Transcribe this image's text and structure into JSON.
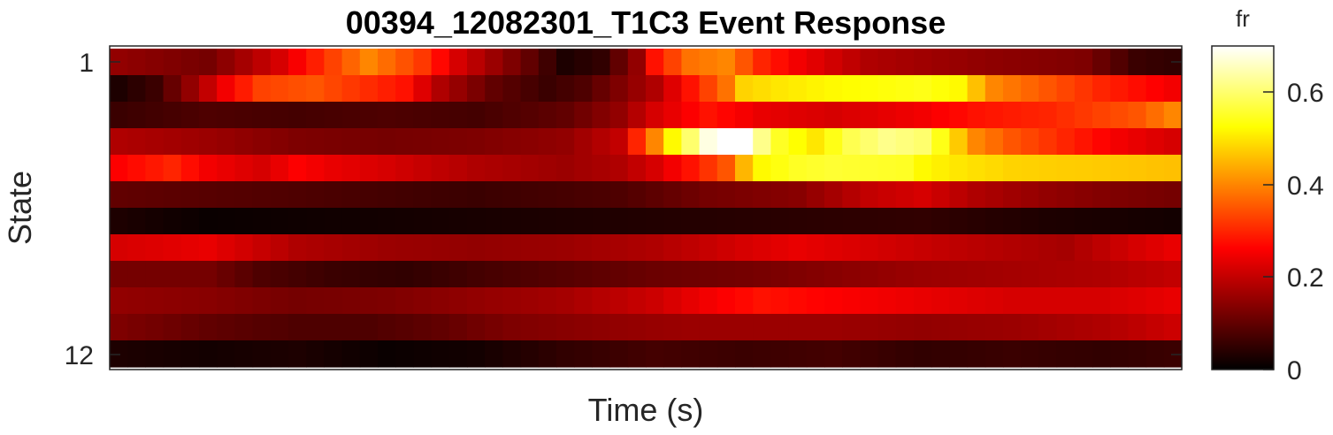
{
  "chart_data": {
    "type": "heatmap",
    "title": "00394_12082301_T1C3 Event Response",
    "xlabel": "Time (s)",
    "ylabel": "State",
    "y_ticks": [
      "1",
      "12"
    ],
    "colorbar": {
      "title": "fr",
      "ticks": [
        "0",
        "0.2",
        "0.4",
        "0.6"
      ],
      "range": [
        0,
        0.7
      ],
      "colormap": "hot"
    },
    "n_states": 12,
    "n_time_bins": 60,
    "state_profiles": [
      {
        "state": 1,
        "points": [
          [
            0,
            0.15
          ],
          [
            5,
            0.12
          ],
          [
            9,
            0.22
          ],
          [
            12,
            0.33
          ],
          [
            14,
            0.4
          ],
          [
            17,
            0.32
          ],
          [
            19,
            0.22
          ],
          [
            23,
            0.1
          ],
          [
            25,
            0.03
          ],
          [
            27,
            0.05
          ],
          [
            29,
            0.15
          ],
          [
            30,
            0.28
          ],
          [
            31,
            0.33
          ],
          [
            32,
            0.38
          ],
          [
            34,
            0.4
          ],
          [
            36,
            0.3
          ],
          [
            38,
            0.25
          ],
          [
            42,
            0.18
          ],
          [
            48,
            0.15
          ],
          [
            54,
            0.13
          ],
          [
            57,
            0.06
          ],
          [
            59,
            0.05
          ]
        ]
      },
      {
        "state": 2,
        "points": [
          [
            0,
            0.03
          ],
          [
            2,
            0.06
          ],
          [
            4,
            0.15
          ],
          [
            6,
            0.25
          ],
          [
            8,
            0.33
          ],
          [
            11,
            0.35
          ],
          [
            13,
            0.32
          ],
          [
            16,
            0.28
          ],
          [
            18,
            0.18
          ],
          [
            21,
            0.1
          ],
          [
            24,
            0.06
          ],
          [
            26,
            0.08
          ],
          [
            30,
            0.18
          ],
          [
            32,
            0.28
          ],
          [
            34,
            0.38
          ],
          [
            35,
            0.48
          ],
          [
            37,
            0.5
          ],
          [
            40,
            0.52
          ],
          [
            45,
            0.54
          ],
          [
            47,
            0.52
          ],
          [
            49,
            0.4
          ],
          [
            52,
            0.35
          ],
          [
            55,
            0.3
          ],
          [
            59,
            0.25
          ]
        ]
      },
      {
        "state": 3,
        "points": [
          [
            0,
            0.06
          ],
          [
            5,
            0.08
          ],
          [
            10,
            0.07
          ],
          [
            15,
            0.08
          ],
          [
            20,
            0.07
          ],
          [
            25,
            0.1
          ],
          [
            28,
            0.15
          ],
          [
            30,
            0.22
          ],
          [
            33,
            0.28
          ],
          [
            36,
            0.24
          ],
          [
            40,
            0.22
          ],
          [
            45,
            0.25
          ],
          [
            48,
            0.28
          ],
          [
            52,
            0.3
          ],
          [
            55,
            0.33
          ],
          [
            57,
            0.35
          ],
          [
            59,
            0.4
          ]
        ]
      },
      {
        "state": 4,
        "points": [
          [
            0,
            0.18
          ],
          [
            5,
            0.16
          ],
          [
            10,
            0.13
          ],
          [
            15,
            0.12
          ],
          [
            20,
            0.13
          ],
          [
            25,
            0.15
          ],
          [
            28,
            0.2
          ],
          [
            29,
            0.3
          ],
          [
            30,
            0.4
          ],
          [
            31,
            0.52
          ],
          [
            32,
            0.6
          ],
          [
            33,
            0.68
          ],
          [
            34,
            0.7
          ],
          [
            35,
            0.7
          ],
          [
            36,
            0.62
          ],
          [
            37,
            0.55
          ],
          [
            39,
            0.5
          ],
          [
            41,
            0.58
          ],
          [
            43,
            0.62
          ],
          [
            45,
            0.6
          ],
          [
            46,
            0.54
          ],
          [
            48,
            0.4
          ],
          [
            50,
            0.35
          ],
          [
            53,
            0.3
          ],
          [
            56,
            0.25
          ],
          [
            59,
            0.22
          ]
        ]
      },
      {
        "state": 5,
        "points": [
          [
            0,
            0.26
          ],
          [
            3,
            0.3
          ],
          [
            5,
            0.25
          ],
          [
            8,
            0.22
          ],
          [
            10,
            0.26
          ],
          [
            12,
            0.24
          ],
          [
            15,
            0.22
          ],
          [
            20,
            0.18
          ],
          [
            25,
            0.16
          ],
          [
            28,
            0.18
          ],
          [
            30,
            0.22
          ],
          [
            32,
            0.28
          ],
          [
            34,
            0.35
          ],
          [
            35,
            0.45
          ],
          [
            36,
            0.52
          ],
          [
            38,
            0.55
          ],
          [
            40,
            0.56
          ],
          [
            44,
            0.55
          ],
          [
            45,
            0.52
          ],
          [
            47,
            0.5
          ],
          [
            50,
            0.48
          ],
          [
            55,
            0.47
          ],
          [
            59,
            0.46
          ]
        ]
      },
      {
        "state": 6,
        "points": [
          [
            0,
            0.1
          ],
          [
            10,
            0.08
          ],
          [
            20,
            0.06
          ],
          [
            28,
            0.08
          ],
          [
            33,
            0.12
          ],
          [
            38,
            0.14
          ],
          [
            42,
            0.2
          ],
          [
            45,
            0.22
          ],
          [
            48,
            0.18
          ],
          [
            52,
            0.15
          ],
          [
            56,
            0.13
          ],
          [
            59,
            0.12
          ]
        ]
      },
      {
        "state": 7,
        "points": [
          [
            0,
            0.03
          ],
          [
            5,
            0.01
          ],
          [
            15,
            0.02
          ],
          [
            25,
            0.03
          ],
          [
            35,
            0.04
          ],
          [
            45,
            0.05
          ],
          [
            52,
            0.03
          ],
          [
            59,
            0.02
          ]
        ]
      },
      {
        "state": 8,
        "points": [
          [
            0,
            0.22
          ],
          [
            5,
            0.24
          ],
          [
            10,
            0.18
          ],
          [
            15,
            0.16
          ],
          [
            20,
            0.15
          ],
          [
            25,
            0.16
          ],
          [
            30,
            0.18
          ],
          [
            35,
            0.22
          ],
          [
            38,
            0.24
          ],
          [
            42,
            0.22
          ],
          [
            48,
            0.19
          ],
          [
            53,
            0.17
          ],
          [
            57,
            0.22
          ],
          [
            59,
            0.24
          ]
        ]
      },
      {
        "state": 9,
        "points": [
          [
            0,
            0.12
          ],
          [
            5,
            0.12
          ],
          [
            8,
            0.08
          ],
          [
            12,
            0.06
          ],
          [
            16,
            0.05
          ],
          [
            20,
            0.07
          ],
          [
            25,
            0.09
          ],
          [
            30,
            0.11
          ],
          [
            35,
            0.12
          ],
          [
            40,
            0.14
          ],
          [
            45,
            0.16
          ],
          [
            50,
            0.17
          ],
          [
            55,
            0.18
          ],
          [
            59,
            0.2
          ]
        ]
      },
      {
        "state": 10,
        "points": [
          [
            0,
            0.15
          ],
          [
            5,
            0.14
          ],
          [
            10,
            0.12
          ],
          [
            15,
            0.13
          ],
          [
            20,
            0.15
          ],
          [
            25,
            0.17
          ],
          [
            30,
            0.21
          ],
          [
            33,
            0.25
          ],
          [
            36,
            0.28
          ],
          [
            40,
            0.26
          ],
          [
            45,
            0.24
          ],
          [
            50,
            0.22
          ],
          [
            55,
            0.22
          ],
          [
            59,
            0.24
          ]
        ]
      },
      {
        "state": 11,
        "points": [
          [
            0,
            0.13
          ],
          [
            5,
            0.1
          ],
          [
            10,
            0.08
          ],
          [
            14,
            0.08
          ],
          [
            18,
            0.1
          ],
          [
            22,
            0.13
          ],
          [
            28,
            0.15
          ],
          [
            32,
            0.16
          ],
          [
            36,
            0.16
          ],
          [
            40,
            0.16
          ],
          [
            45,
            0.15
          ],
          [
            50,
            0.16
          ],
          [
            55,
            0.18
          ],
          [
            59,
            0.21
          ]
        ]
      },
      {
        "state": 12,
        "points": [
          [
            0,
            0.03
          ],
          [
            5,
            0.02
          ],
          [
            10,
            0.03
          ],
          [
            15,
            0.01
          ],
          [
            20,
            0.02
          ],
          [
            25,
            0.05
          ],
          [
            30,
            0.07
          ],
          [
            35,
            0.06
          ],
          [
            40,
            0.07
          ],
          [
            45,
            0.05
          ],
          [
            50,
            0.06
          ],
          [
            55,
            0.05
          ],
          [
            59,
            0.06
          ]
        ]
      }
    ]
  }
}
